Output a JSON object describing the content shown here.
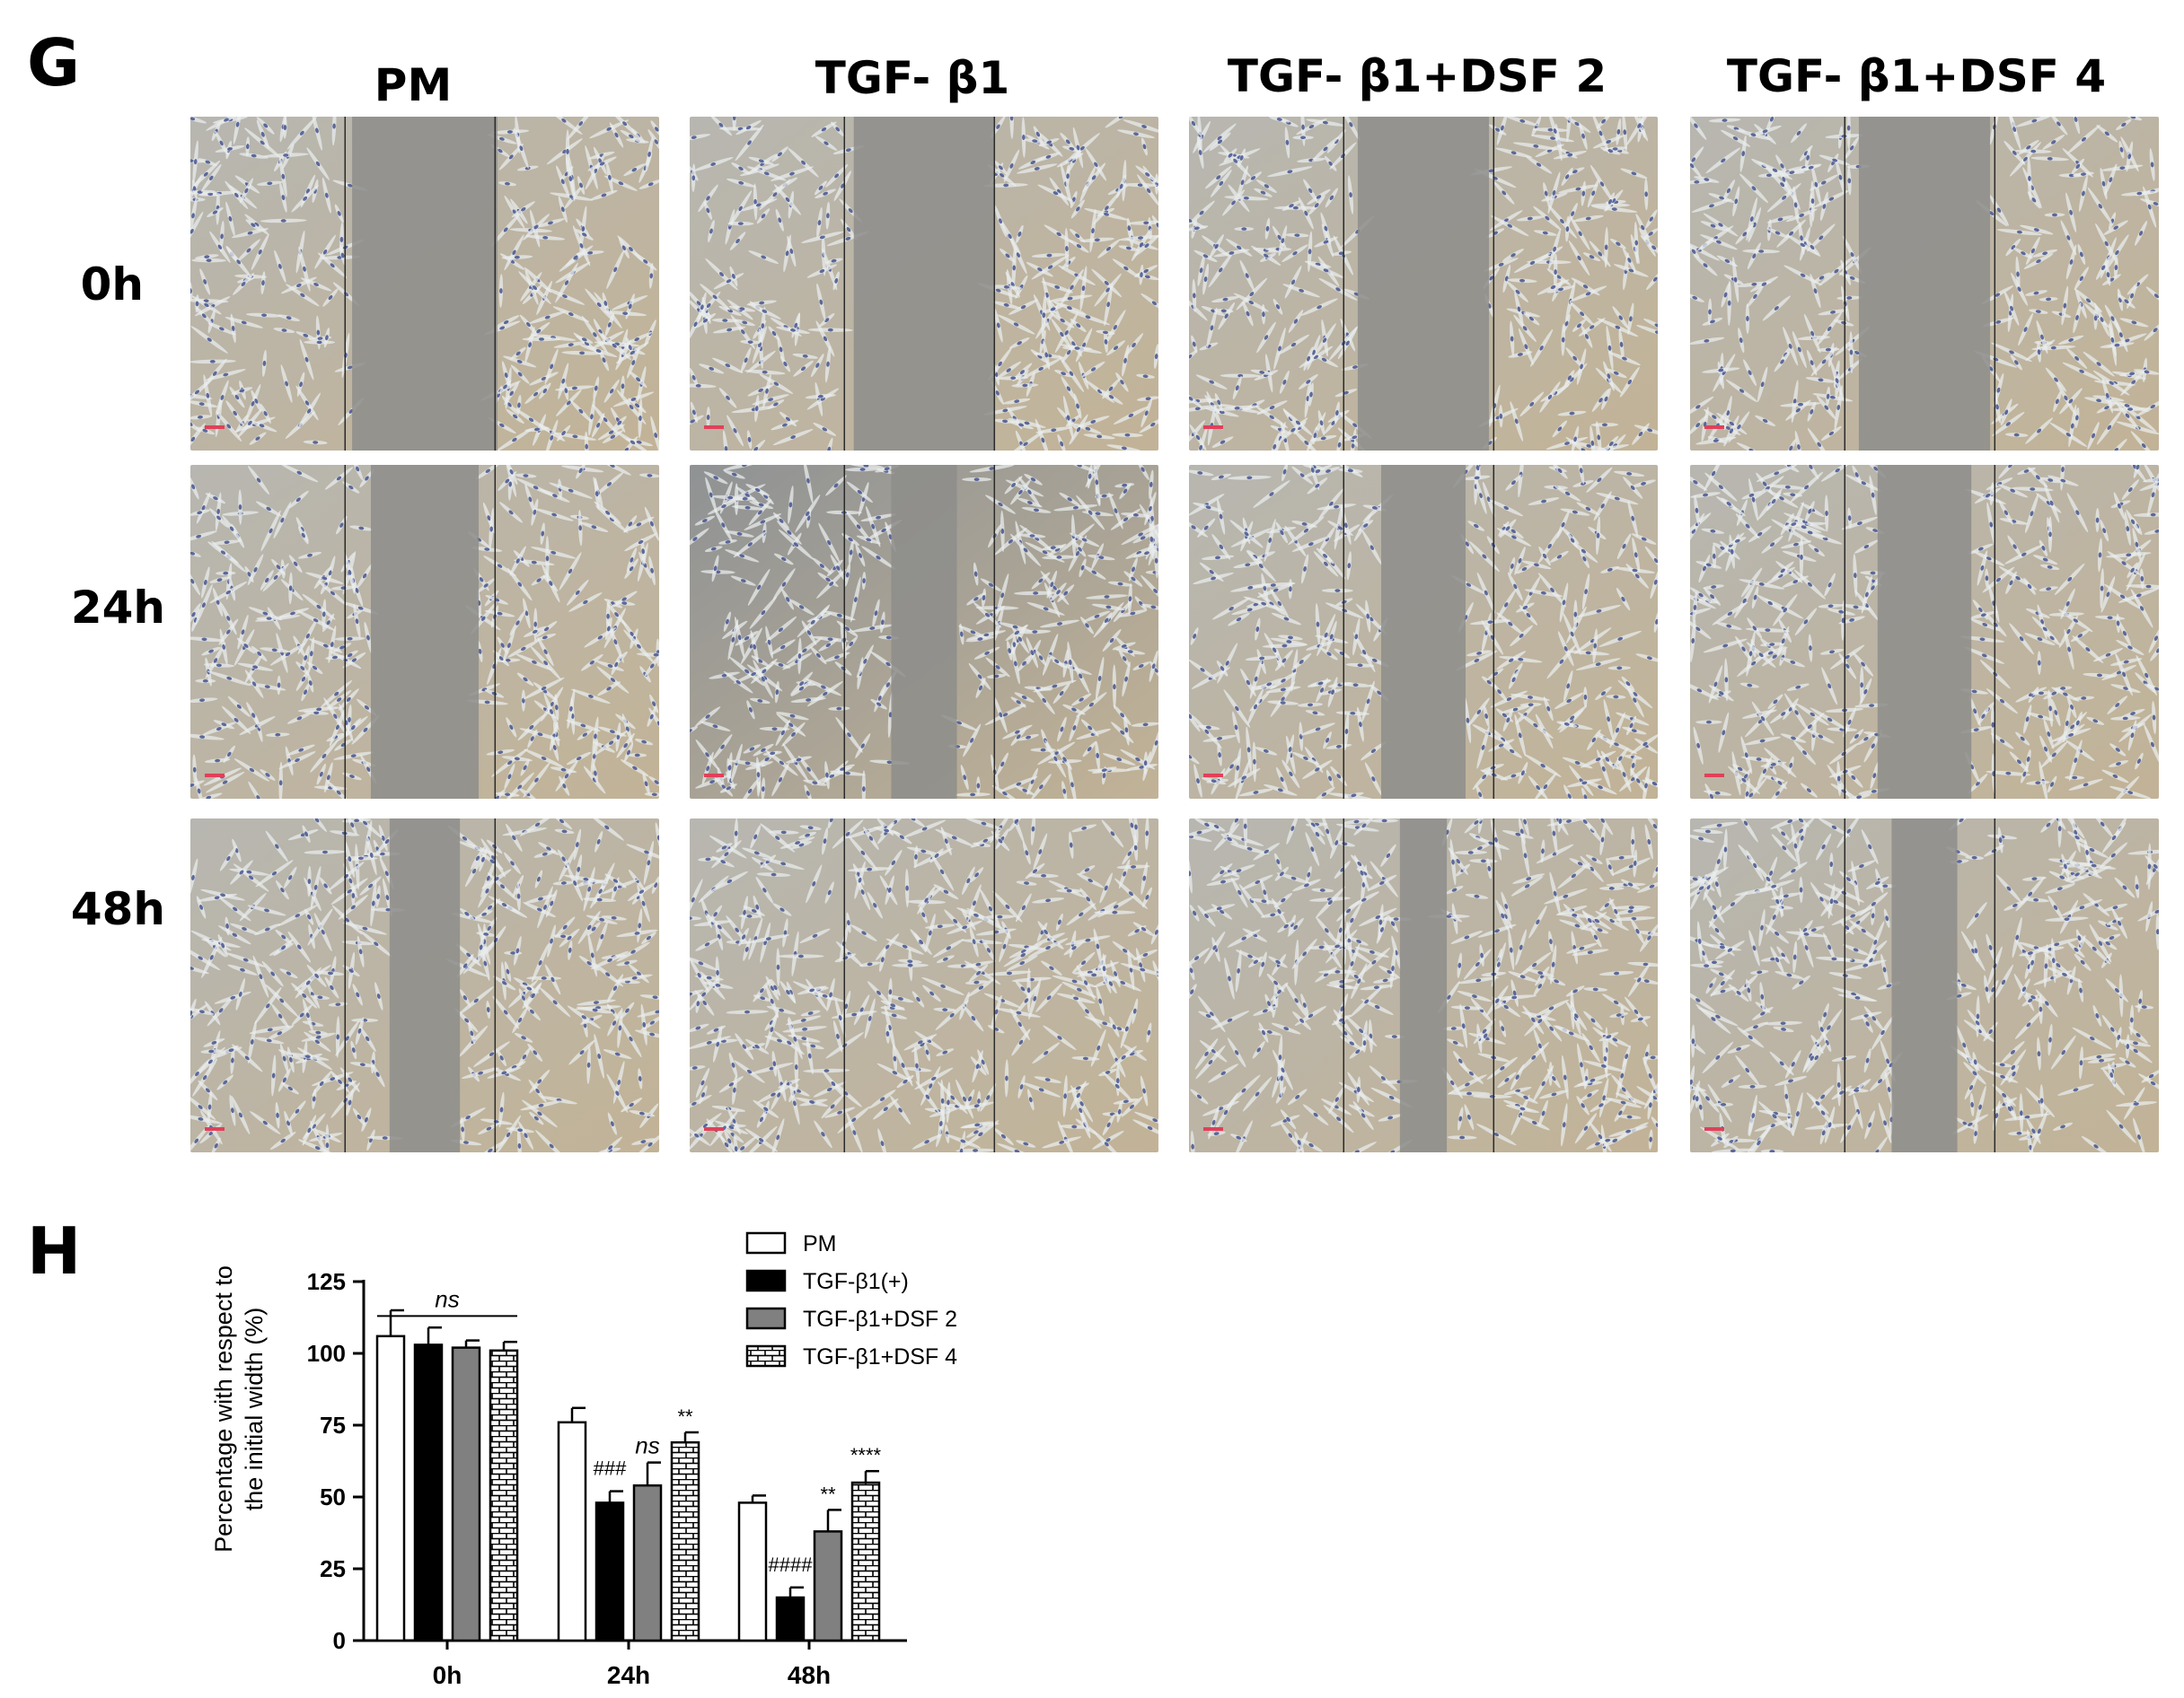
{
  "panel_g": {
    "letter": "G",
    "columns": [
      "PM",
      "TGF- β1",
      "TGF- β1+DSF 2",
      "TGF- β1+DSF 4"
    ],
    "rows": [
      "0h",
      "24h",
      "48h"
    ],
    "scratch_open_fraction": [
      [
        0.31,
        0.3,
        0.28,
        0.28
      ],
      [
        0.23,
        0.14,
        0.18,
        0.2
      ],
      [
        0.15,
        0.0,
        0.1,
        0.14
      ]
    ]
  },
  "panel_h": {
    "letter": "H"
  },
  "chart_data": {
    "type": "bar",
    "categories": [
      "0h",
      "24h",
      "48h"
    ],
    "ylabel": "Percentage with respect to the initial width (%)",
    "ylim": [
      0,
      125
    ],
    "yticks": [
      0,
      25,
      50,
      75,
      100,
      125
    ],
    "series": [
      {
        "name": "PM",
        "fill": "#ffffff",
        "pattern": "none",
        "values": [
          106,
          76,
          48
        ],
        "errors": [
          9,
          5,
          2.5
        ]
      },
      {
        "name": "TGF-β1(+)",
        "fill": "#000000",
        "pattern": "none",
        "values": [
          103,
          48,
          15
        ],
        "errors": [
          6,
          4,
          3.5
        ]
      },
      {
        "name": "TGF-β1+DSF 2",
        "fill": "#808080",
        "pattern": "none",
        "values": [
          102,
          54,
          38
        ],
        "errors": [
          2.5,
          8,
          7.5
        ]
      },
      {
        "name": "TGF-β1+DSF 4",
        "fill": "#ffffff",
        "pattern": "brick",
        "values": [
          101,
          69,
          55
        ],
        "errors": [
          3,
          3.5,
          4
        ]
      }
    ],
    "annotations": [
      {
        "text": "ns",
        "italic": true,
        "category": 0,
        "bracket": true
      },
      {
        "text": "###",
        "italic": false,
        "category": 1,
        "series": 1
      },
      {
        "text": "ns",
        "italic": true,
        "category": 1,
        "series": 2
      },
      {
        "text": "**",
        "italic": false,
        "category": 1,
        "series": 3
      },
      {
        "text": "####",
        "italic": false,
        "category": 2,
        "series": 1
      },
      {
        "text": "**",
        "italic": false,
        "category": 2,
        "series": 2
      },
      {
        "text": "****",
        "italic": false,
        "category": 2,
        "series": 3
      }
    ],
    "legend_position": "top-right"
  }
}
